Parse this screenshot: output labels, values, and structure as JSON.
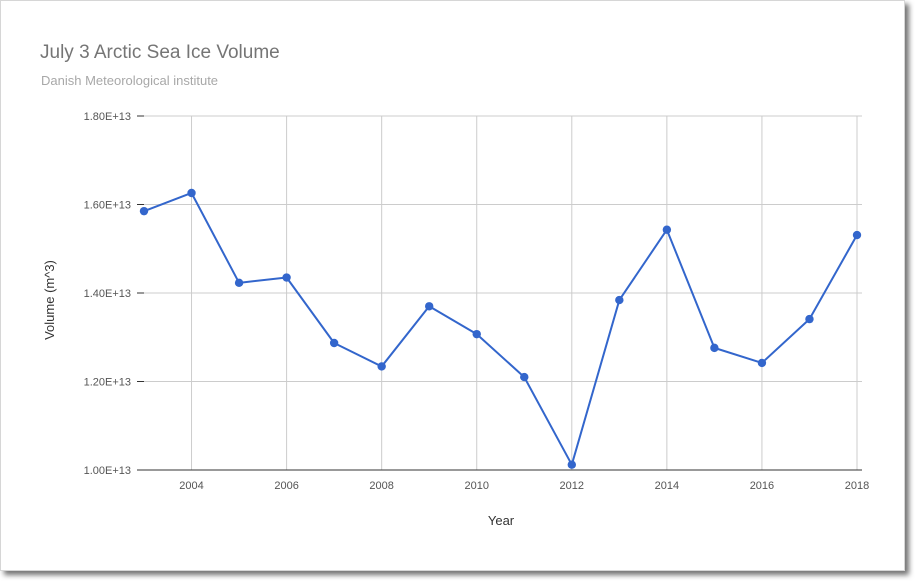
{
  "chart_data": {
    "type": "line",
    "title": "July 3 Arctic Sea Ice Volume",
    "subtitle": "Danish Meteorological institute",
    "xlabel": "Year",
    "ylabel": "Volume (m^3)",
    "xlim": [
      2003,
      2018
    ],
    "ylim": [
      10000000000000.0,
      18000000000000.0
    ],
    "x_ticks": [
      2004,
      2006,
      2008,
      2010,
      2012,
      2014,
      2016,
      2018
    ],
    "x_tick_labels": [
      "2004",
      "2006",
      "2008",
      "2010",
      "2012",
      "2014",
      "2016",
      "2018"
    ],
    "y_ticks": [
      10000000000000.0,
      12000000000000.0,
      14000000000000.0,
      16000000000000.0,
      18000000000000.0
    ],
    "y_tick_labels": [
      "1.00E+13",
      "1.20E+13",
      "1.40E+13",
      "1.60E+13",
      "1.80E+13"
    ],
    "grid": true,
    "series": [
      {
        "color": "#3366cc",
        "x": [
          2003,
          2004,
          2005,
          2006,
          2007,
          2008,
          2009,
          2010,
          2011,
          2012,
          2013,
          2014,
          2015,
          2016,
          2017,
          2018
        ],
        "values": [
          15850000000000.0,
          16260000000000.0,
          14230000000000.0,
          14350000000000.0,
          12870000000000.0,
          12340000000000.0,
          13700000000000.0,
          13070000000000.0,
          12100000000000.0,
          10120000000000.0,
          13840000000000.0,
          15430000000000.0,
          12760000000000.0,
          12420000000000.0,
          13410000000000.0,
          15310000000000.0
        ]
      }
    ]
  }
}
